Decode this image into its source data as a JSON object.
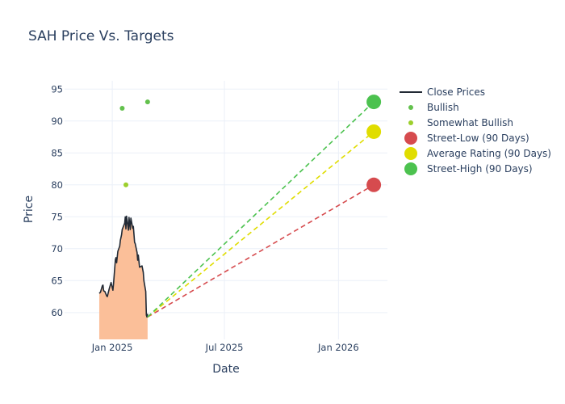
{
  "chart_data": {
    "type": "line",
    "title": "SAH Price Vs. Targets",
    "xlabel": "Date",
    "ylabel": "Price",
    "x_ticks": [
      {
        "date": "2025-01-01",
        "label": "Jan 2025"
      },
      {
        "date": "2025-07-01",
        "label": "Jul 2025"
      },
      {
        "date": "2026-01-01",
        "label": "Jan 2026"
      }
    ],
    "y_ticks": [
      60,
      65,
      70,
      75,
      80,
      85,
      90,
      95
    ],
    "xlim": [
      "2024-10-16",
      "2026-03-21"
    ],
    "ylim": [
      55.8,
      96.3
    ],
    "grid": true,
    "legend_position": "right",
    "series": [
      {
        "name": "Close Prices",
        "kind": "line-area",
        "color": "#222a35",
        "fill_color": "#fbbf99",
        "points": [
          [
            "2024-12-11",
            63.0
          ],
          [
            "2024-12-13",
            63.2
          ],
          [
            "2024-12-16",
            64.2
          ],
          [
            "2024-12-17",
            64.3
          ],
          [
            "2024-12-18",
            63.4
          ],
          [
            "2024-12-20",
            63.3
          ],
          [
            "2024-12-23",
            62.6
          ],
          [
            "2024-12-24",
            62.5
          ],
          [
            "2024-12-27",
            63.7
          ],
          [
            "2024-12-30",
            64.7
          ],
          [
            "2025-01-02",
            63.5
          ],
          [
            "2025-01-03",
            64.5
          ],
          [
            "2025-01-06",
            68.3
          ],
          [
            "2025-01-07",
            68.6
          ],
          [
            "2025-01-08",
            67.8
          ],
          [
            "2025-01-10",
            69.6
          ],
          [
            "2025-01-13",
            70.4
          ],
          [
            "2025-01-14",
            71.3
          ],
          [
            "2025-01-16",
            72.2
          ],
          [
            "2025-01-17",
            73.0
          ],
          [
            "2025-01-21",
            74.0
          ],
          [
            "2025-01-22",
            75.0
          ],
          [
            "2025-01-23",
            73.1
          ],
          [
            "2025-01-24",
            75.1
          ],
          [
            "2025-01-27",
            72.9
          ],
          [
            "2025-01-28",
            74.9
          ],
          [
            "2025-01-30",
            73.0
          ],
          [
            "2025-01-31",
            74.8
          ],
          [
            "2025-02-03",
            73.2
          ],
          [
            "2025-02-04",
            73.5
          ],
          [
            "2025-02-06",
            71.0
          ],
          [
            "2025-02-07",
            70.8
          ],
          [
            "2025-02-10",
            69.4
          ],
          [
            "2025-02-11",
            68.2
          ],
          [
            "2025-02-12",
            69.0
          ],
          [
            "2025-02-14",
            67.1
          ],
          [
            "2025-02-18",
            67.3
          ],
          [
            "2025-02-20",
            66.3
          ],
          [
            "2025-02-21",
            65.0
          ],
          [
            "2025-02-24",
            63.3
          ],
          [
            "2025-02-25",
            59.6
          ],
          [
            "2025-02-26",
            59.3
          ],
          [
            "2025-02-27",
            59.8
          ]
        ]
      },
      {
        "name": "Bullish",
        "kind": "markers",
        "color": "#63c14d",
        "points": [
          [
            "2025-01-17",
            92.0
          ],
          [
            "2025-02-27",
            93.0
          ]
        ]
      },
      {
        "name": "Somewhat Bullish",
        "kind": "markers",
        "color": "#9ccf2c",
        "points": [
          [
            "2025-01-23",
            80.0
          ]
        ]
      },
      {
        "name": "Street-Low (90 Days)",
        "kind": "target",
        "color": "#d64b4e",
        "points": [
          [
            "2025-02-27",
            59.3
          ],
          [
            "2026-02-27",
            80.0
          ]
        ]
      },
      {
        "name": "Average Rating (90 Days)",
        "kind": "target",
        "color": "#e0dd00",
        "points": [
          [
            "2025-02-27",
            59.3
          ],
          [
            "2026-02-27",
            88.33
          ]
        ]
      },
      {
        "name": "Street-High (90 Days)",
        "kind": "target",
        "color": "#4cc24f",
        "points": [
          [
            "2025-02-27",
            59.3
          ],
          [
            "2026-02-27",
            93.0
          ]
        ]
      }
    ]
  }
}
